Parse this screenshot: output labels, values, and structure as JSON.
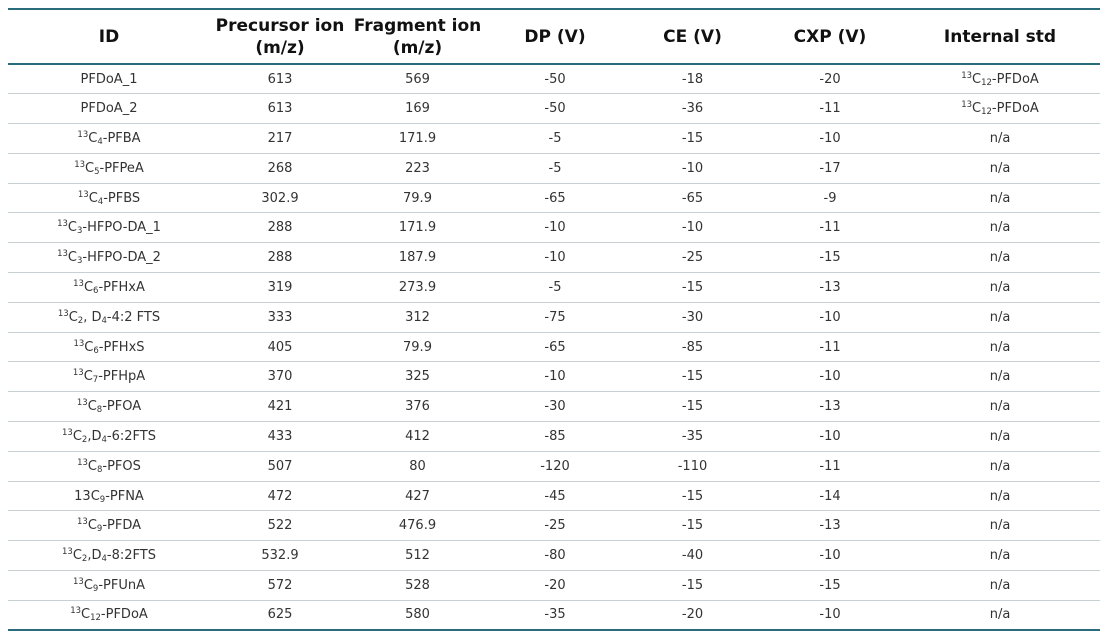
{
  "table": {
    "headers": [
      {
        "line1": "ID",
        "line2": ""
      },
      {
        "line1": "Precursor ion",
        "line2": "(m/z)"
      },
      {
        "line1": "Fragment ion",
        "line2": "(m/z)"
      },
      {
        "line1": "DP (V)",
        "line2": ""
      },
      {
        "line1": "CE (V)",
        "line2": ""
      },
      {
        "line1": "CXP (V)",
        "line2": ""
      },
      {
        "line1": "Internal std",
        "line2": ""
      }
    ],
    "rows": [
      {
        "id": {
          "sup": "",
          "base": "PFDoA_1",
          "sub": "",
          "rest": ""
        },
        "precursor": "613",
        "fragment": "569",
        "dp": "-50",
        "ce": "-18",
        "cxp": "-20",
        "istd": {
          "sup": "13",
          "base": "C",
          "sub": "12",
          "rest": "-PFDoA"
        }
      },
      {
        "id": {
          "sup": "",
          "base": "PFDoA_2",
          "sub": "",
          "rest": ""
        },
        "precursor": "613",
        "fragment": "169",
        "dp": "-50",
        "ce": "-36",
        "cxp": "-11",
        "istd": {
          "sup": "13",
          "base": "C",
          "sub": "12",
          "rest": "-PFDoA"
        }
      },
      {
        "id": {
          "sup": "13",
          "base": "C",
          "sub": "4",
          "rest": "-PFBA"
        },
        "precursor": "217",
        "fragment": "171.9",
        "dp": "-5",
        "ce": "-15",
        "cxp": "-10",
        "istd": {
          "sup": "",
          "base": "n/a",
          "sub": "",
          "rest": ""
        }
      },
      {
        "id": {
          "sup": "13",
          "base": "C",
          "sub": "5",
          "rest": "-PFPeA"
        },
        "precursor": "268",
        "fragment": "223",
        "dp": "-5",
        "ce": "-10",
        "cxp": "-17",
        "istd": {
          "sup": "",
          "base": "n/a",
          "sub": "",
          "rest": ""
        }
      },
      {
        "id": {
          "sup": "13",
          "base": "C",
          "sub": "4",
          "rest": "-PFBS"
        },
        "precursor": "302.9",
        "fragment": "79.9",
        "dp": "-65",
        "ce": "-65",
        "cxp": "-9",
        "istd": {
          "sup": "",
          "base": "n/a",
          "sub": "",
          "rest": ""
        }
      },
      {
        "id": {
          "sup": "13",
          "base": "C",
          "sub": "3",
          "rest": "-HFPO-DA_1"
        },
        "precursor": "288",
        "fragment": "171.9",
        "dp": "-10",
        "ce": "-10",
        "cxp": "-11",
        "istd": {
          "sup": "",
          "base": "n/a",
          "sub": "",
          "rest": ""
        }
      },
      {
        "id": {
          "sup": "13",
          "base": "C",
          "sub": "3",
          "rest": "-HFPO-DA_2"
        },
        "precursor": "288",
        "fragment": "187.9",
        "dp": "-10",
        "ce": "-25",
        "cxp": "-15",
        "istd": {
          "sup": "",
          "base": "n/a",
          "sub": "",
          "rest": ""
        }
      },
      {
        "id": {
          "sup": "13",
          "base": "C",
          "sub": "6",
          "rest": "-PFHxA"
        },
        "precursor": "319",
        "fragment": "273.9",
        "dp": "-5",
        "ce": "-15",
        "cxp": "-13",
        "istd": {
          "sup": "",
          "base": "n/a",
          "sub": "",
          "rest": ""
        }
      },
      {
        "id": {
          "sup": "13",
          "base": "C",
          "sub": "2",
          "rest": ", D",
          "sub2": "4",
          "rest2": "-4:2 FTS"
        },
        "precursor": "333",
        "fragment": "312",
        "dp": "-75",
        "ce": "-30",
        "cxp": "-10",
        "istd": {
          "sup": "",
          "base": "n/a",
          "sub": "",
          "rest": ""
        }
      },
      {
        "id": {
          "sup": "13",
          "base": "C",
          "sub": "6",
          "rest": "-PFHxS"
        },
        "precursor": "405",
        "fragment": "79.9",
        "dp": "-65",
        "ce": "-85",
        "cxp": "-11",
        "istd": {
          "sup": "",
          "base": "n/a",
          "sub": "",
          "rest": ""
        }
      },
      {
        "id": {
          "sup": "13",
          "base": "C",
          "sub": "7",
          "rest": "-PFHpA"
        },
        "precursor": "370",
        "fragment": "325",
        "dp": "-10",
        "ce": "-15",
        "cxp": "-10",
        "istd": {
          "sup": "",
          "base": "n/a",
          "sub": "",
          "rest": ""
        }
      },
      {
        "id": {
          "sup": "13",
          "base": "C",
          "sub": "8",
          "rest": "-PFOA"
        },
        "precursor": "421",
        "fragment": "376",
        "dp": "-30",
        "ce": "-15",
        "cxp": "-13",
        "istd": {
          "sup": "",
          "base": "n/a",
          "sub": "",
          "rest": ""
        }
      },
      {
        "id": {
          "sup": "13",
          "base": "C",
          "sub": "2",
          "rest": ",D",
          "sub2": "4",
          "rest2": "-6:2FTS"
        },
        "precursor": "433",
        "fragment": "412",
        "dp": "-85",
        "ce": "-35",
        "cxp": "-10",
        "istd": {
          "sup": "",
          "base": "n/a",
          "sub": "",
          "rest": ""
        }
      },
      {
        "id": {
          "sup": "13",
          "base": "C",
          "sub": "8",
          "rest": "-PFOS"
        },
        "precursor": "507",
        "fragment": "80",
        "dp": "-120",
        "ce": "-110",
        "cxp": "-11",
        "istd": {
          "sup": "",
          "base": "n/a",
          "sub": "",
          "rest": ""
        }
      },
      {
        "id": {
          "sup": "",
          "base": "13C",
          "sub": "9",
          "rest": "-PFNA"
        },
        "precursor": "472",
        "fragment": "427",
        "dp": "-45",
        "ce": "-15",
        "cxp": "-14",
        "istd": {
          "sup": "",
          "base": "n/a",
          "sub": "",
          "rest": ""
        }
      },
      {
        "id": {
          "sup": "13",
          "base": "C",
          "sub": "9",
          "rest": "-PFDA"
        },
        "precursor": "522",
        "fragment": "476.9",
        "dp": "-25",
        "ce": "-15",
        "cxp": "-13",
        "istd": {
          "sup": "",
          "base": "n/a",
          "sub": "",
          "rest": ""
        }
      },
      {
        "id": {
          "sup": "13",
          "base": "C",
          "sub": "2",
          "rest": ",D",
          "sub2": "4",
          "rest2": "-8:2FTS"
        },
        "precursor": "532.9",
        "fragment": "512",
        "dp": "-80",
        "ce": "-40",
        "cxp": "-10",
        "istd": {
          "sup": "",
          "base": "n/a",
          "sub": "",
          "rest": ""
        }
      },
      {
        "id": {
          "sup": "13",
          "base": "C",
          "sub": "9",
          "rest": "-PFUnA"
        },
        "precursor": "572",
        "fragment": "528",
        "dp": "-20",
        "ce": "-15",
        "cxp": "-15",
        "istd": {
          "sup": "",
          "base": "n/a",
          "sub": "",
          "rest": ""
        }
      },
      {
        "id": {
          "sup": "13",
          "base": "C",
          "sub": "12",
          "rest": "-PFDoA"
        },
        "precursor": "625",
        "fragment": "580",
        "dp": "-35",
        "ce": "-20",
        "cxp": "-10",
        "istd": {
          "sup": "",
          "base": "n/a",
          "sub": "",
          "rest": ""
        }
      }
    ]
  },
  "colors": {
    "rule": "#2a6b7c",
    "row_divider": "#c7d0d2"
  }
}
